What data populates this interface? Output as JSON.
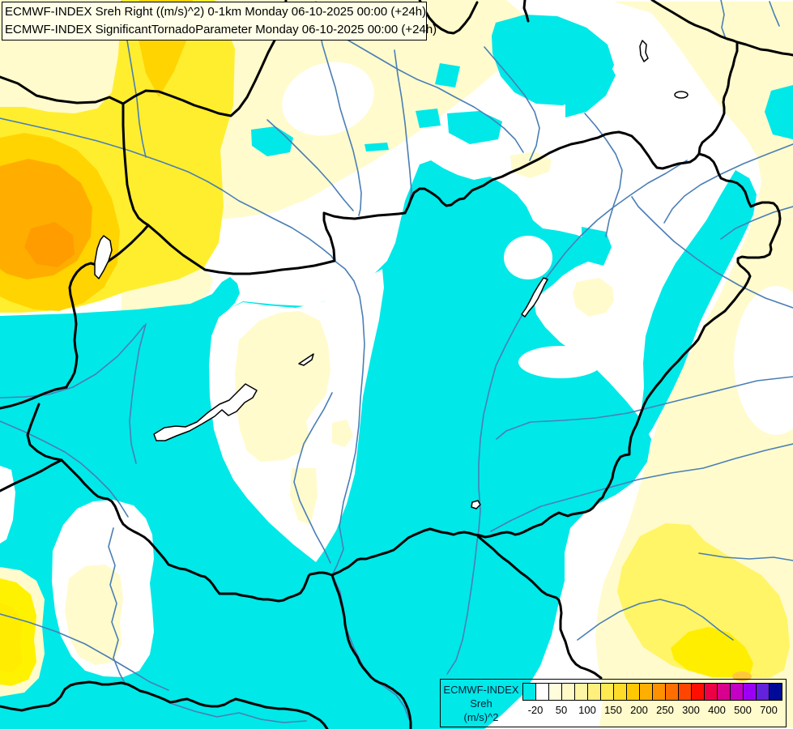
{
  "header": {
    "line1": "ECMWF-INDEX Sreh Right ((m/s)^2) 0-1km Monday 06-10-2025 00:00 (+24h)",
    "line2": "ECMWF-INDEX SignificantTornadoParameter Monday 06-10-2025 00:00 (+24h)"
  },
  "legend": {
    "title_lines": [
      "ECMWF-INDEX",
      "Sreh",
      "(m/s)^2"
    ],
    "tick_labels": [
      "-20",
      "50",
      "100",
      "150",
      "200",
      "250",
      "300",
      "400",
      "500",
      "700"
    ],
    "cell_colors": [
      "#00E8E8",
      "#FFFFFF",
      "#FFFDDC",
      "#FFFAC8",
      "#FFF6A5",
      "#FFF07D",
      "#FFEA52",
      "#FFDC28",
      "#FFC800",
      "#FFAF00",
      "#FF9100",
      "#FF6E00",
      "#FF4600",
      "#FF0F00",
      "#EE0046",
      "#D8008C",
      "#C400C4",
      "#9B00F5",
      "#6322DC",
      "#000A96"
    ]
  },
  "map": {
    "colors": {
      "sreh_below_neg20": "#00E8E8",
      "background_white": "#FFFFFF",
      "pale_yellow": "#FFFBCC",
      "yellow": "#FFEE2E",
      "gold": "#FFD400",
      "orange": "#FFAE00",
      "deep_orange": "#FF9C00",
      "river_blue": "#4A7EB5",
      "border_black": "#000000",
      "lake_fill": "#FFFFFF"
    }
  }
}
